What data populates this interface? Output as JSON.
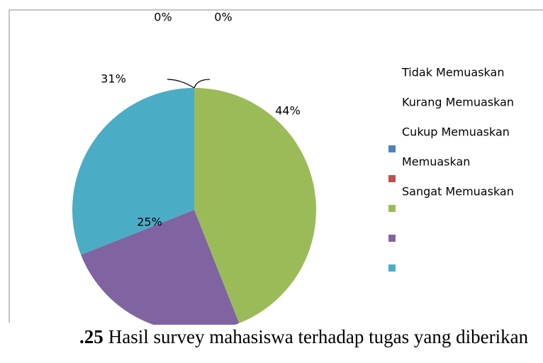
{
  "chart_data": {
    "type": "pie",
    "categories": [
      "Tidak Memuaskan",
      "Kurang Memuaskan",
      "Cukup Memuaskan",
      "Memuaskan",
      "Sangat Memuaskan"
    ],
    "values": [
      0,
      0,
      44,
      25,
      31
    ],
    "value_labels": [
      "0%",
      "0%",
      "44%",
      "25%",
      "31%"
    ],
    "colors": [
      "#4f81bd",
      "#c0504d",
      "#9bbb59",
      "#8064a2",
      "#4bacc6"
    ]
  },
  "caption": {
    "number": ".25",
    "text": "Hasil survey mahasiswa terhadap tugas yang diberikan"
  }
}
